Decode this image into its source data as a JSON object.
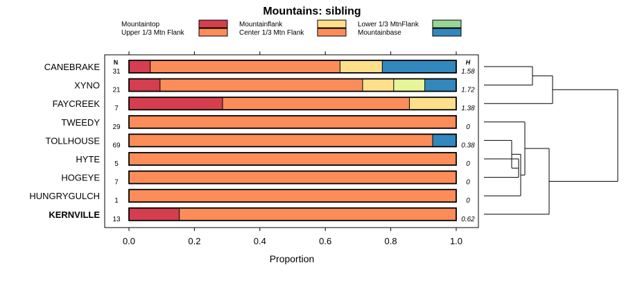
{
  "chart_data": {
    "type": "bar",
    "orientation": "horizontal",
    "stacked": true,
    "title": "Mountains: sibling",
    "xlabel": "Proportion",
    "ylabel": "",
    "xlim": [
      0,
      1
    ],
    "x_ticks": [
      "0.0",
      "0.2",
      "0.4",
      "0.6",
      "0.8",
      "1.0"
    ],
    "n_header": "N",
    "h_header": "H",
    "legend_position": "top",
    "legend": [
      {
        "name": "Mountaintop",
        "color": "#D53E4F"
      },
      {
        "name": "Upper 1/3 Mtn Flank",
        "color": "#FC8D59"
      },
      {
        "name": "Mountainflank",
        "color": "#FEE08B"
      },
      {
        "name": "Center 1/3 Mtn Flank",
        "color": "#FC8D59"
      },
      {
        "name": "Lower 1/3 MtnFlank",
        "color": "#99D594"
      },
      {
        "name": "Mountainbase",
        "color": "#3288BD"
      }
    ],
    "series_names": [
      "Mountaintop",
      "Upper 1/3 Mtn Flank",
      "Mountainflank",
      "Lower 1/3 MtnFlank",
      "Mountainbase"
    ],
    "series_colors": [
      "#D53E4F",
      "#FC8D59",
      "#FEE08B",
      "#E6F598",
      "#3288BD"
    ],
    "series_colors_alt": {
      "Lower 1/3 MtnFlank": "#99D594"
    },
    "categories": [
      "CANEBRAKE",
      "XYNO",
      "FAYCREEK",
      "TWEEDY",
      "TOLLHOUSE",
      "HYTE",
      "HOGEYE",
      "HUNGRYGULCH",
      "KERNVILLE"
    ],
    "bold_categories": [
      "KERNVILLE"
    ],
    "n": [
      "31",
      "21",
      "7",
      "29",
      "69",
      "5",
      "7",
      "1",
      "13"
    ],
    "h": [
      "1.58",
      "1.72",
      "1.38",
      "0",
      "0.38",
      "0",
      "0",
      "0",
      "0.62"
    ],
    "values": [
      [
        0.065,
        0.58,
        0.129,
        0.0,
        0.226
      ],
      [
        0.095,
        0.619,
        0.095,
        0.095,
        0.096
      ],
      [
        0.286,
        0.571,
        0.143,
        0.0,
        0.0
      ],
      [
        0.0,
        1.0,
        0.0,
        0.0,
        0.0
      ],
      [
        0.0,
        0.928,
        0.0,
        0.0,
        0.072
      ],
      [
        0.0,
        1.0,
        0.0,
        0.0,
        0.0
      ],
      [
        0.0,
        1.0,
        0.0,
        0.0,
        0.0
      ],
      [
        0.0,
        1.0,
        0.0,
        0.0,
        0.0
      ],
      [
        0.154,
        0.846,
        0.0,
        0.0,
        0.0
      ]
    ],
    "dendrogram": {
      "type": "hierarchical-clustering",
      "leaf_order": [
        "CANEBRAKE",
        "XYNO",
        "FAYCREEK",
        "TWEEDY",
        "TOLLHOUSE",
        "HYTE",
        "HOGEYE",
        "HUNGRYGULCH",
        "KERNVILLE"
      ],
      "merges": [
        {
          "a": "HYTE",
          "b": "HOGEYE",
          "height": 0.05
        },
        {
          "a": "TOLLHOUSE",
          "b": [
            "HYTE",
            "HOGEYE"
          ],
          "height": 0.08
        },
        {
          "a": "HUNGRYGULCH",
          "b": [
            "TOLLHOUSE",
            "HYTE",
            "HOGEYE"
          ],
          "height": 0.09
        },
        {
          "a": "TWEEDY",
          "b": [
            "TOLLHOUSE",
            "HYTE",
            "HOGEYE",
            "HUNGRYGULCH"
          ],
          "height": 0.2
        },
        {
          "a": "KERNVILLE",
          "b": [
            "TWEEDY",
            "TOLLHOUSE",
            "HYTE",
            "HOGEYE",
            "HUNGRYGULCH"
          ],
          "height": 0.38
        },
        {
          "a": "CANEBRAKE",
          "b": "XYNO",
          "height": 0.31
        },
        {
          "a": "FAYCREEK",
          "b": [
            "CANEBRAKE",
            "XYNO"
          ],
          "height": 0.55
        },
        {
          "a": [
            "CANEBRAKE",
            "XYNO",
            "FAYCREEK"
          ],
          "b": [
            "TWEEDY",
            "TOLLHOUSE",
            "HYTE",
            "HOGEYE",
            "HUNGRYGULCH",
            "KERNVILLE"
          ],
          "height": 1.0
        }
      ]
    }
  }
}
